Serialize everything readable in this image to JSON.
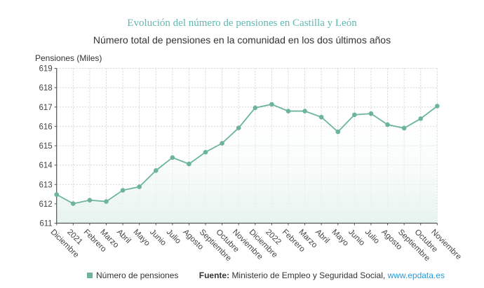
{
  "title": "Evolución del número de pensiones en Castilla y León",
  "subtitle": "Número total de pensiones en la comunidad en los dos últimos años",
  "footer": {
    "legend_label": "Número de pensiones",
    "source_label": "Fuente:",
    "source_text": "Ministerio de Empleo y Seguridad Social,",
    "source_link": "www.epdata.es"
  },
  "colors": {
    "series": "#6cb59b",
    "title": "#5fb8b0",
    "link": "#2a9ad6"
  },
  "chart_data": {
    "type": "area",
    "title": "Evolución del número de pensiones en Castilla y León",
    "subtitle": "Número total de pensiones en la comunidad en los dos últimos años",
    "ylabel": "Pensiones (Miles)",
    "xlabel": "",
    "ylim": [
      611,
      619
    ],
    "yticks": [
      611,
      612,
      613,
      614,
      615,
      616,
      617,
      618,
      619
    ],
    "grid": true,
    "legend": "bottom",
    "categories": [
      "Diciembre",
      "2021",
      "Febrero",
      "Marzo",
      "Abril",
      "Mayo",
      "Junio",
      "Julio",
      "Agosto",
      "Septiembre",
      "Octubre",
      "Noviembre",
      "Diciembre",
      "2022",
      "Febrero",
      "Marzo",
      "Abril",
      "Mayo",
      "Junio",
      "Julio",
      "Agosto",
      "Septiembre",
      "Octubre",
      "Noviembre"
    ],
    "series": [
      {
        "name": "Número de pensiones",
        "values": [
          612.48,
          612.01,
          612.19,
          612.12,
          612.7,
          612.88,
          613.72,
          614.39,
          614.06,
          614.67,
          615.13,
          615.92,
          616.96,
          617.14,
          616.79,
          616.79,
          616.48,
          615.72,
          616.6,
          616.66,
          616.09,
          615.91,
          616.4,
          617.05
        ]
      }
    ]
  }
}
